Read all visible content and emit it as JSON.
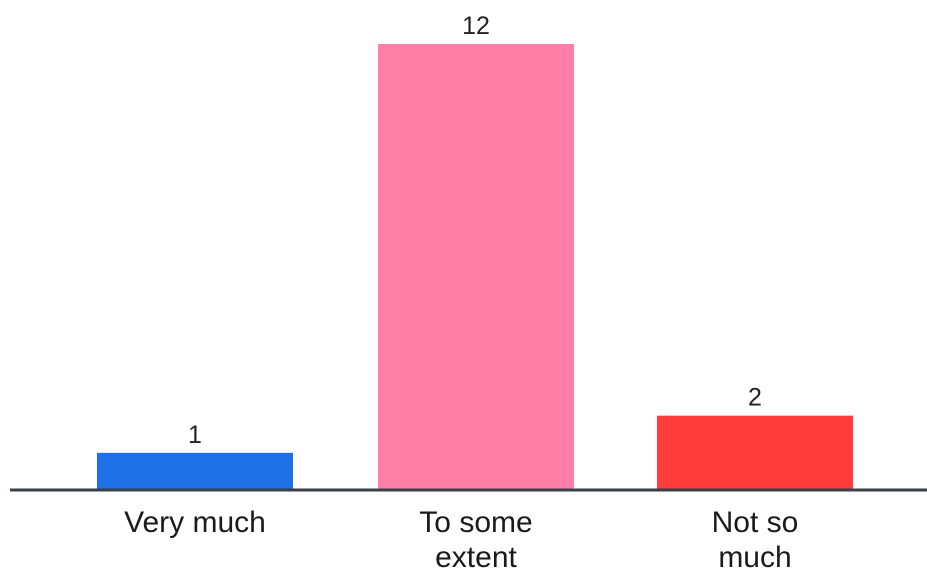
{
  "chart_data": {
    "type": "bar",
    "categories": [
      [
        "Very much"
      ],
      [
        "To some",
        "extent"
      ],
      [
        "Not so",
        "much"
      ]
    ],
    "values": [
      1,
      12,
      2
    ],
    "colors": [
      "#1f6fe8",
      "#ff7fa6",
      "#ff3b3b"
    ],
    "ylim": [
      0,
      12
    ],
    "title": "",
    "xlabel": "",
    "ylabel": "",
    "grid": false,
    "legend": "none",
    "axis_color": "#3a3f4a"
  }
}
